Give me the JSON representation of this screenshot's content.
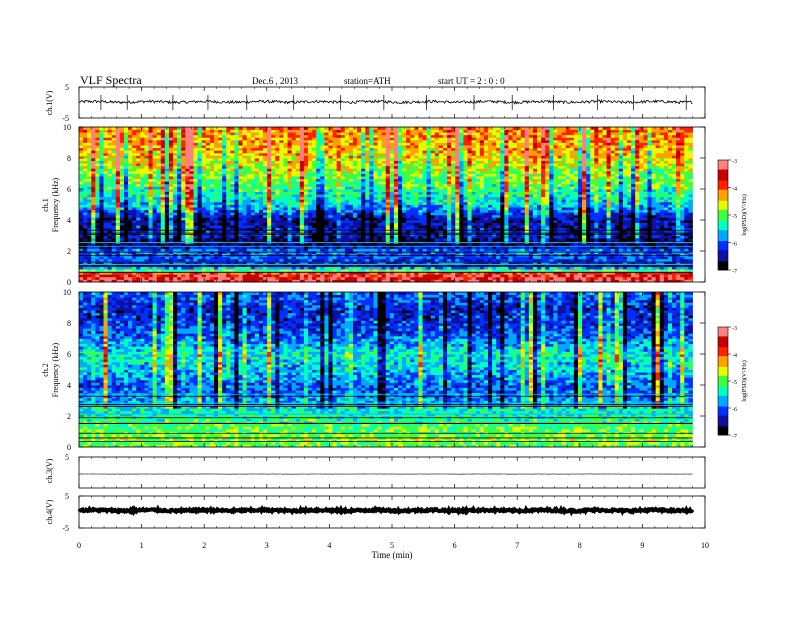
{
  "header": {
    "title": "VLF  Spectra",
    "date": "Dec.6  , 2013",
    "station": "station=ATH",
    "start": "start  UT  =   2  : 0  : 0"
  },
  "chart_data": [
    {
      "id": "ch1-waveform",
      "type": "line",
      "ylabel": "ch.1(V)",
      "ylim": [
        -5,
        5
      ],
      "yticks": [
        5,
        -5
      ],
      "xlim": [
        0,
        10
      ],
      "baseline": 0.2,
      "noise_amplitude": 0.45,
      "spike_times_min": [
        0.35,
        0.77,
        1.5,
        2.06,
        2.68,
        3.43,
        4.18,
        4.87,
        5.55,
        6.31,
        6.92,
        7.58,
        8.28,
        8.86,
        9.7
      ],
      "x_end": 9.8
    },
    {
      "id": "ch1-spectrogram",
      "type": "heatmap",
      "ylabel": "ch.1",
      "ylabel2": "Frequency  (kHz)",
      "ylim": [
        0,
        10
      ],
      "yticks": [
        0,
        2,
        4,
        6,
        8,
        10
      ],
      "xlim": [
        0,
        10
      ],
      "x_end": 9.8,
      "colorbar_label": "log(PSD)(V²/Hz)",
      "colorbar_ticks": [
        -3,
        -4,
        -5,
        -6,
        -7
      ],
      "clim": [
        -7,
        -3
      ],
      "profile_freq_khz": [
        0,
        0.5,
        1,
        1.5,
        2,
        2.5,
        3,
        4,
        5,
        6,
        7,
        8,
        9,
        10
      ],
      "profile_log_psd": [
        -3.3,
        -3.5,
        -6.2,
        -6.1,
        -5.8,
        -6.9,
        -6.3,
        -6.5,
        -5.6,
        -5.2,
        -4.9,
        -4.5,
        -4.3,
        -4.2
      ]
    },
    {
      "id": "ch2-spectrogram",
      "type": "heatmap",
      "ylabel": "ch.2",
      "ylabel2": "Frequency  (kHz)",
      "ylim": [
        0,
        10
      ],
      "yticks": [
        0,
        2,
        4,
        6,
        8,
        10
      ],
      "xlim": [
        0,
        10
      ],
      "x_end": 9.8,
      "colorbar_label": "log(PSD)(V²/Hz)",
      "colorbar_ticks": [
        -3,
        -4,
        -5,
        -6,
        -7
      ],
      "clim": [
        -7,
        -3
      ],
      "profile_freq_khz": [
        0,
        0.5,
        1,
        1.5,
        2,
        2.5,
        3,
        4,
        5,
        6,
        7,
        8,
        9,
        10
      ],
      "profile_log_psd": [
        -5.0,
        -4.8,
        -5.0,
        -5.1,
        -5.3,
        -5.5,
        -5.8,
        -6.0,
        -5.6,
        -5.4,
        -5.9,
        -6.2,
        -6.3,
        -5.9
      ]
    },
    {
      "id": "ch3-waveform",
      "type": "line",
      "ylabel": "ch.3(V)",
      "ylim": [
        -5,
        5
      ],
      "yticks": [
        5
      ],
      "xlim": [
        0,
        10
      ],
      "baseline": -0.5,
      "noise_amplitude": 0.05,
      "spike_times_min": [],
      "x_end": 9.8
    },
    {
      "id": "ch4-waveform",
      "type": "line",
      "ylabel": "ch.4(V)",
      "ylim": [
        -5,
        5
      ],
      "yticks": [
        5,
        -5
      ],
      "xlim": [
        0,
        10
      ],
      "baseline": 0.5,
      "noise_amplitude": 0.35,
      "spike_times_min": [],
      "x_end": 9.8
    }
  ],
  "x_axis": {
    "label": "Time  (min)",
    "ticks": [
      0,
      1,
      2,
      3,
      4,
      5,
      6,
      7,
      8,
      9,
      10
    ]
  },
  "colors": {
    "colormap": [
      "#000000",
      "#1010a0",
      "#0030ff",
      "#00a8ff",
      "#00ffc0",
      "#40ff40",
      "#e0ff00",
      "#ffa000",
      "#ff2000",
      "#c80000",
      "#ff8080",
      "#ffffff"
    ]
  }
}
